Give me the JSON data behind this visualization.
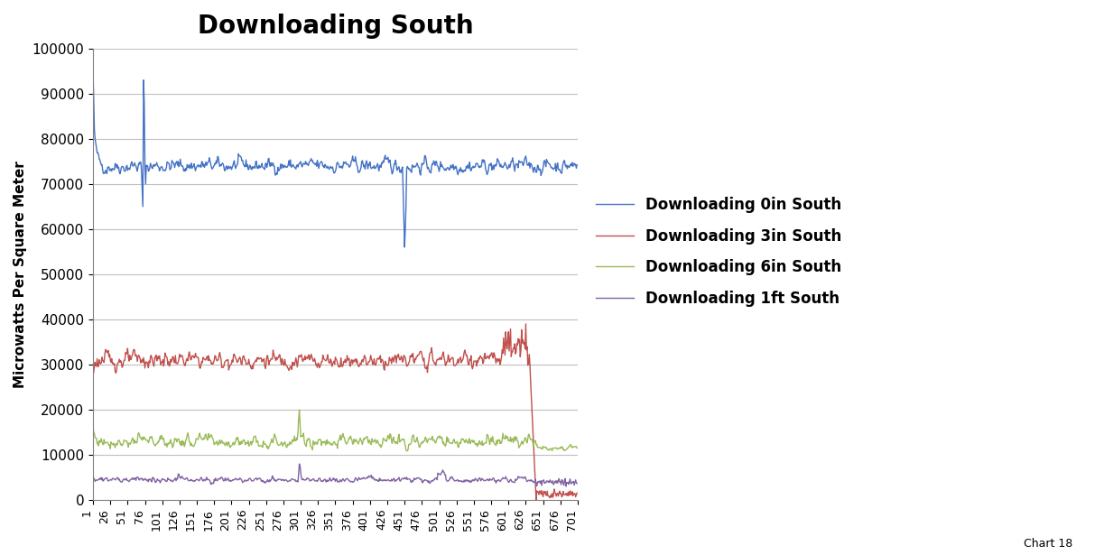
{
  "title": "Downloading South",
  "ylabel": "Microwatts Per Square Meter",
  "xlabel": "",
  "xlim": [
    1,
    701
  ],
  "ylim": [
    0,
    100000
  ],
  "yticks": [
    0,
    10000,
    20000,
    30000,
    40000,
    50000,
    60000,
    70000,
    80000,
    90000,
    100000
  ],
  "ytick_labels": [
    "0",
    "10000",
    "20000",
    "30000",
    "40000",
    "50000",
    "60000",
    "70000",
    "80000",
    "90000",
    "100000"
  ],
  "xticks": [
    1,
    26,
    51,
    76,
    101,
    126,
    151,
    176,
    201,
    226,
    251,
    276,
    301,
    326,
    351,
    376,
    401,
    426,
    451,
    476,
    501,
    526,
    551,
    576,
    601,
    626,
    651,
    676,
    701
  ],
  "legend_labels": [
    "Downloading 0in South",
    "Downloading 3in South",
    "Downloading 6in South",
    "Downloading 1ft South"
  ],
  "line_colors": [
    "#4472C4",
    "#C0504D",
    "#9BBB59",
    "#8064A2"
  ],
  "line_width": 1.0,
  "title_fontsize": 20,
  "title_fontweight": "bold",
  "tick_label_rotation": 90,
  "background_color": "#FFFFFF",
  "grid_color": "#C0C0C0",
  "chart_label": "Chart 18",
  "legend_fontsize": 12,
  "legend_fontweight": "bold",
  "ylabel_fontsize": 11,
  "ytick_fontsize": 11,
  "xtick_fontsize": 9
}
